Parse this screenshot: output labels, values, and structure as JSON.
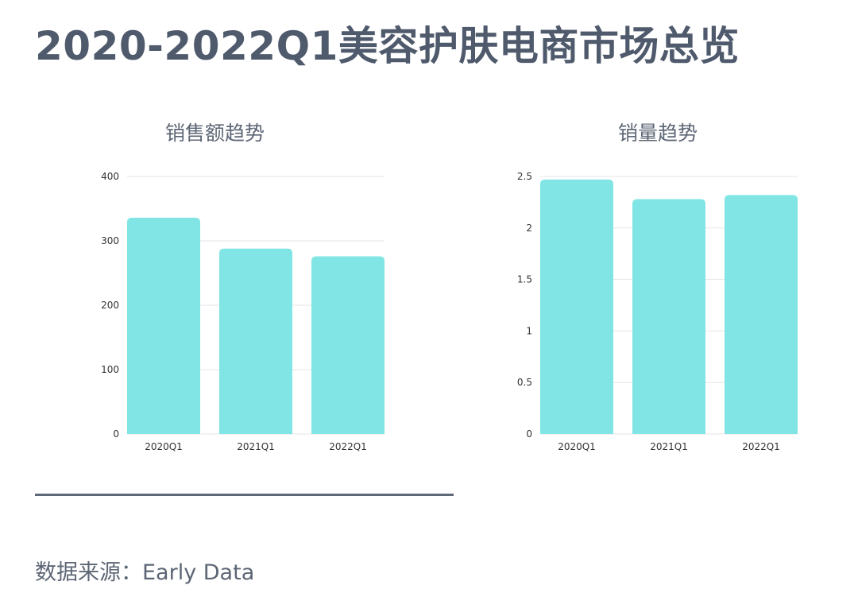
{
  "page": {
    "title": "2020-2022Q1美容护肤电商市场总览",
    "source": "数据来源：Early Data"
  },
  "colors": {
    "bar": "#80e5e4",
    "grid": "#e4e6e8",
    "axis_text": "#333333",
    "title_text": "#4f5a6c"
  },
  "chart_data": [
    {
      "type": "bar",
      "title": "销售额趋势",
      "categories": [
        "2020Q1",
        "2021Q1",
        "2022Q1"
      ],
      "values": [
        336,
        288,
        276
      ],
      "ylim": [
        0,
        400
      ],
      "yticks": [
        "0",
        "100",
        "200",
        "300",
        "400"
      ],
      "grid": true,
      "legend": "none"
    },
    {
      "type": "bar",
      "title": "销量趋势",
      "categories": [
        "2020Q1",
        "2021Q1",
        "2022Q1"
      ],
      "values": [
        2.47,
        2.28,
        2.32
      ],
      "ylim": [
        0,
        2.5
      ],
      "yticks": [
        "0",
        "0.5",
        "1",
        "1.5",
        "2",
        "2.5"
      ],
      "grid": true,
      "legend": "none"
    }
  ]
}
